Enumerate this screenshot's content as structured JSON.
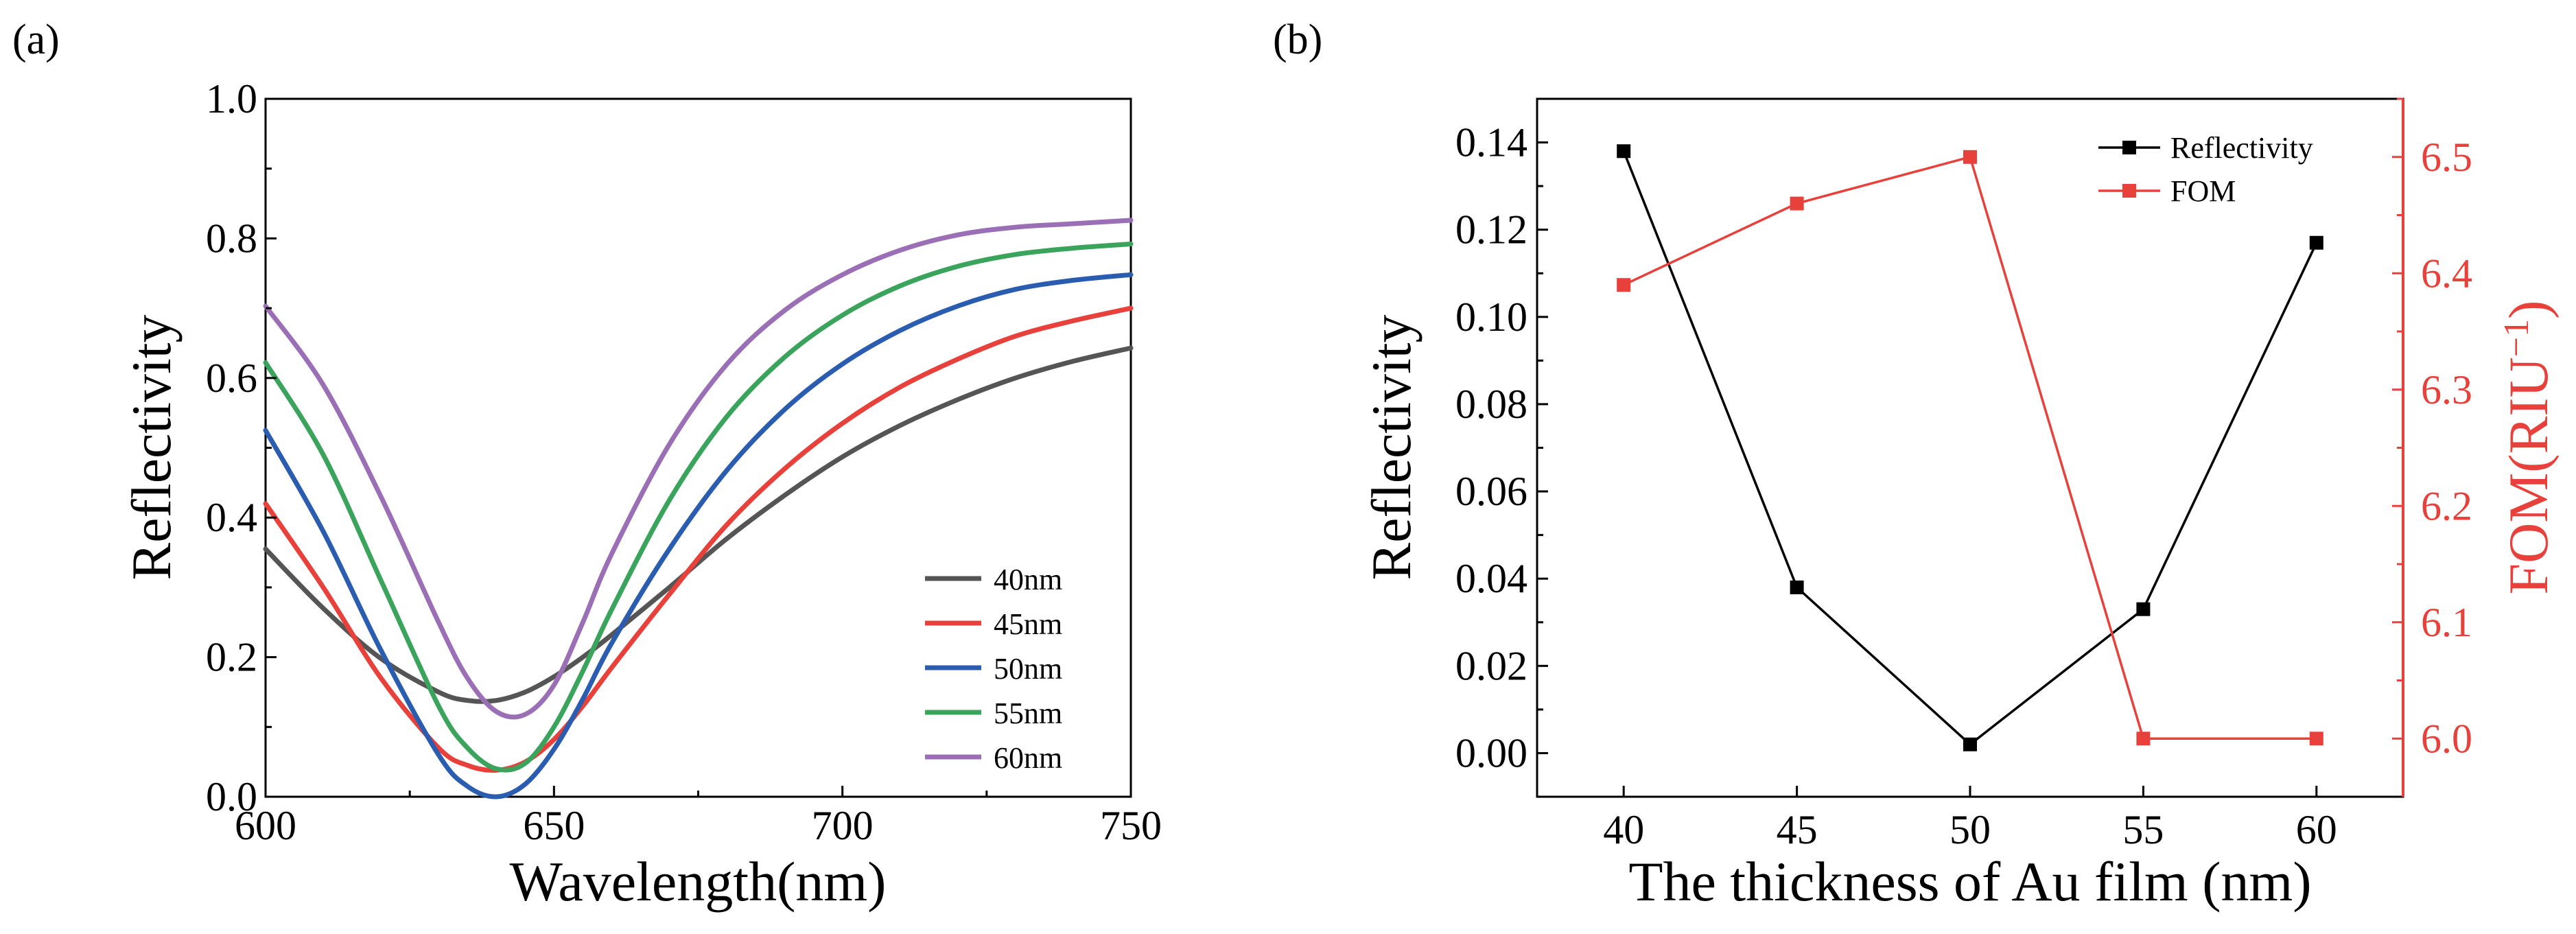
{
  "chart_data": [
    {
      "panel_label": "(a)",
      "type": "line",
      "title": "",
      "xlabel": "Wavelength(nm)",
      "ylabel": "Reflectivity",
      "xlim": [
        600,
        750
      ],
      "ylim": [
        0.0,
        1.0
      ],
      "xticks": [
        600,
        650,
        700,
        750
      ],
      "xtick_labels": [
        "600",
        "650",
        "700",
        "750"
      ],
      "yticks": [
        0.0,
        0.2,
        0.4,
        0.6,
        0.8,
        1.0
      ],
      "ytick_labels": [
        "0.0",
        "0.2",
        "0.4",
        "0.6",
        "0.8",
        "1.0"
      ],
      "grid": false,
      "legend_position": "bottom-right",
      "x": [
        600,
        610,
        620,
        630,
        635,
        640,
        645,
        650,
        655,
        660,
        670,
        680,
        690,
        700,
        710,
        720,
        730,
        740,
        750
      ],
      "series": [
        {
          "name": "40nm",
          "color": "#555555",
          "values": [
            0.355,
            0.27,
            0.198,
            0.15,
            0.138,
            0.138,
            0.15,
            0.172,
            0.2,
            0.232,
            0.3,
            0.37,
            0.432,
            0.487,
            0.532,
            0.569,
            0.6,
            0.624,
            0.643
          ]
        },
        {
          "name": "45nm",
          "color": "#e8403a",
          "values": [
            0.42,
            0.3,
            0.17,
            0.07,
            0.045,
            0.038,
            0.05,
            0.082,
            0.13,
            0.185,
            0.29,
            0.39,
            0.47,
            0.535,
            0.587,
            0.627,
            0.66,
            0.682,
            0.7
          ]
        },
        {
          "name": "50nm",
          "color": "#2a5db0",
          "values": [
            0.525,
            0.38,
            0.21,
            0.06,
            0.015,
            0.0,
            0.018,
            0.068,
            0.14,
            0.22,
            0.355,
            0.468,
            0.555,
            0.62,
            0.668,
            0.703,
            0.727,
            0.74,
            0.748
          ]
        },
        {
          "name": "55nm",
          "color": "#3aa35c",
          "values": [
            0.622,
            0.49,
            0.31,
            0.13,
            0.07,
            0.04,
            0.048,
            0.1,
            0.18,
            0.268,
            0.425,
            0.545,
            0.63,
            0.69,
            0.732,
            0.76,
            0.777,
            0.786,
            0.792
          ]
        },
        {
          "name": "60nm",
          "color": "#9b6fb5",
          "values": [
            0.703,
            0.59,
            0.43,
            0.25,
            0.17,
            0.122,
            0.118,
            0.16,
            0.25,
            0.348,
            0.505,
            0.62,
            0.697,
            0.748,
            0.783,
            0.805,
            0.816,
            0.821,
            0.826
          ]
        }
      ]
    },
    {
      "panel_label": "(b)",
      "type": "line",
      "title": "",
      "xlabel": "The thickness of Au film (nm)",
      "ylabel": "Reflectivity",
      "ylabel_right": "FOM(RIU",
      "ylabel_right_sup": "−1",
      "ylabel_right_close": ")",
      "x": [
        40,
        45,
        50,
        55,
        60
      ],
      "xlim": [
        37.5,
        62.5
      ],
      "xticks": [
        40,
        45,
        50,
        55,
        60
      ],
      "xtick_labels": [
        "40",
        "45",
        "50",
        "55",
        "60"
      ],
      "ylim": [
        -0.01,
        0.15
      ],
      "yticks": [
        0.0,
        0.02,
        0.04,
        0.06,
        0.08,
        0.1,
        0.12,
        0.14
      ],
      "ytick_labels": [
        "0.00",
        "0.02",
        "0.04",
        "0.06",
        "0.08",
        "0.10",
        "0.12",
        "0.14"
      ],
      "ylim_right": [
        5.95,
        6.55
      ],
      "yticks_right": [
        6.0,
        6.1,
        6.2,
        6.3,
        6.4,
        6.5
      ],
      "ytick_labels_right": [
        "6.0",
        "6.1",
        "6.2",
        "6.3",
        "6.4",
        "6.5"
      ],
      "grid": false,
      "legend_position": "top-right",
      "series": [
        {
          "name": "Reflectivity",
          "axis": "left",
          "color": "#000000",
          "values": [
            0.138,
            0.038,
            0.002,
            0.033,
            0.117
          ]
        },
        {
          "name": "FOM",
          "axis": "right",
          "color": "#e8403a",
          "values": [
            6.39,
            6.46,
            6.5,
            6.0,
            6.0
          ]
        }
      ]
    }
  ]
}
